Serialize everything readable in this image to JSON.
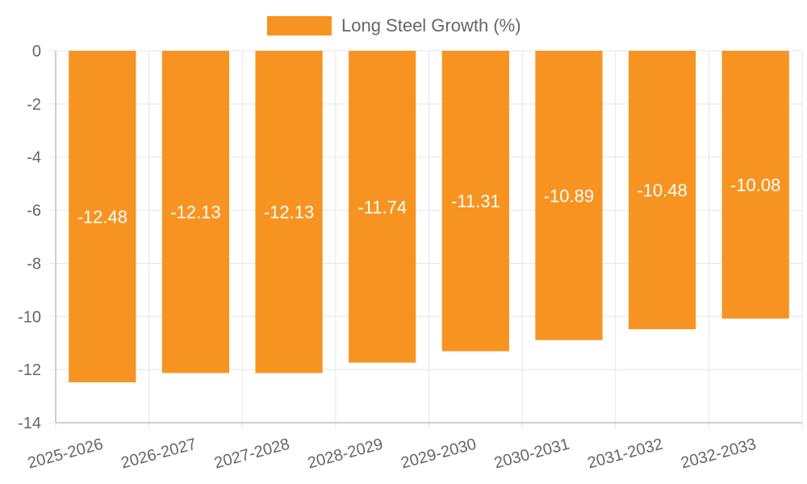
{
  "chart_data": {
    "type": "bar",
    "categories": [
      "2025-2026",
      "2026-2027",
      "2027-2028",
      "2028-2029",
      "2029-2030",
      "2030-2031",
      "2031-2032",
      "2032-2033"
    ],
    "series": [
      {
        "name": "Long Steel Growth (%)",
        "values": [
          -12.48,
          -12.13,
          -12.13,
          -11.74,
          -11.31,
          -10.89,
          -10.48,
          -10.08
        ],
        "color": "#F79421"
      }
    ],
    "y_ticks": [
      "0",
      "-2",
      "-4",
      "-6",
      "-8",
      "-10",
      "-12",
      "-14"
    ],
    "y_tick_values": [
      0,
      -2,
      -4,
      -6,
      -8,
      -10,
      -12,
      -14
    ],
    "ylim": [
      -14,
      0
    ],
    "title": "",
    "xlabel": "",
    "ylabel": "",
    "legend_position": "top",
    "grid": true,
    "grid_color": "#e5e5e5",
    "axis_color": "#bfbfbf"
  }
}
